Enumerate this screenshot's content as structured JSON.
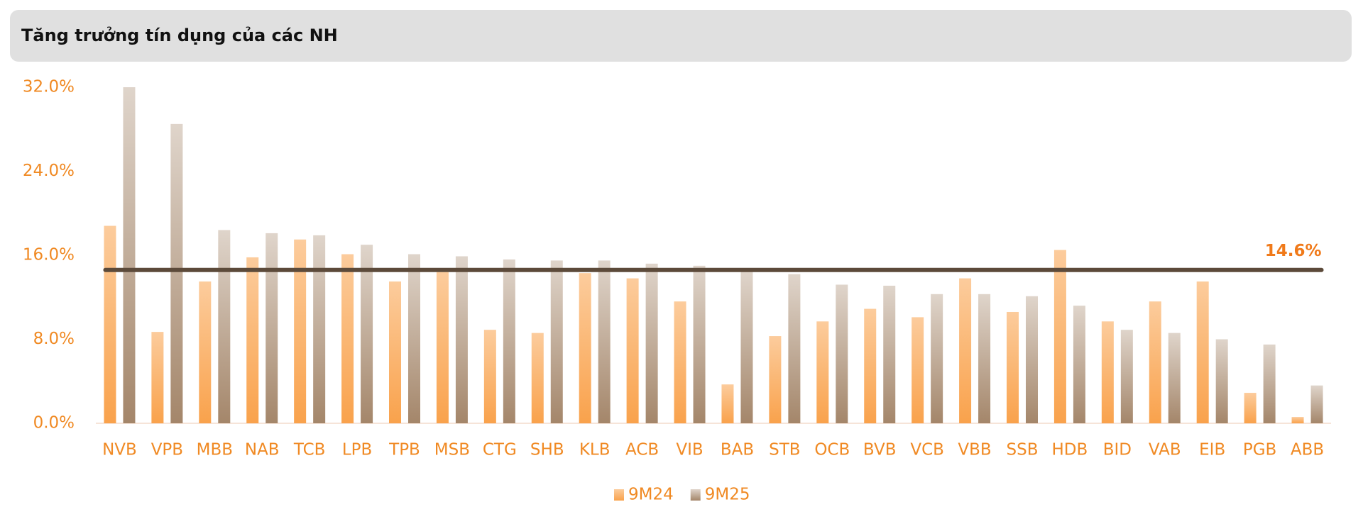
{
  "chart_data": {
    "type": "bar",
    "title": "Tăng trưởng tín dụng của các NH",
    "categories": [
      "NVB",
      "VPB",
      "MBB",
      "NAB",
      "TCB",
      "LPB",
      "TPB",
      "MSB",
      "CTG",
      "SHB",
      "KLB",
      "ACB",
      "VIB",
      "BAB",
      "STB",
      "OCB",
      "BVB",
      "VCB",
      "VBB",
      "SSB",
      "HDB",
      "BID",
      "VAB",
      "EIB",
      "PGB",
      "ABB"
    ],
    "series": [
      {
        "name": "9M24",
        "color": "#f9a24c",
        "values": [
          18.8,
          8.7,
          13.5,
          15.8,
          17.5,
          16.1,
          13.5,
          14.4,
          8.9,
          8.6,
          14.3,
          13.8,
          11.6,
          3.7,
          8.3,
          9.7,
          10.9,
          10.1,
          13.8,
          10.6,
          16.5,
          9.7,
          11.6,
          13.5,
          2.9,
          0.6
        ]
      },
      {
        "name": "9M25",
        "color": "#a4866a",
        "values": [
          32.0,
          28.5,
          18.4,
          18.1,
          17.9,
          17.0,
          16.1,
          15.9,
          15.6,
          15.5,
          15.5,
          15.2,
          15.0,
          14.5,
          14.2,
          13.2,
          13.1,
          12.3,
          12.3,
          12.1,
          11.2,
          8.9,
          8.6,
          8.0,
          7.5,
          3.6
        ]
      }
    ],
    "average": {
      "value": 14.6,
      "label": "14.6%"
    },
    "ylim": [
      0,
      32
    ],
    "yticks": [
      {
        "value": 0,
        "label": "0.0%"
      },
      {
        "value": 8,
        "label": "8.0%"
      },
      {
        "value": 16,
        "label": "16.0%"
      },
      {
        "value": 24,
        "label": "24.0%"
      },
      {
        "value": 32,
        "label": "32.0%"
      }
    ],
    "legend": "bottom"
  }
}
